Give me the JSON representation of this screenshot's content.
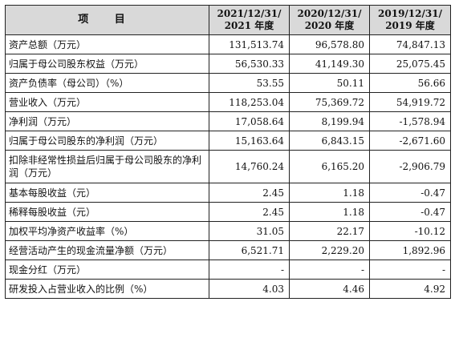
{
  "header": {
    "item": "项 目",
    "periods": [
      {
        "line1": "2021/12/31/",
        "line2": "2021 年度"
      },
      {
        "line1": "2020/12/31/",
        "line2": "2020 年度"
      },
      {
        "line1": "2019/12/31/",
        "line2": "2019 年度"
      }
    ]
  },
  "rows": [
    {
      "label": "资产总额（万元）",
      "v": [
        "131,513.74",
        "96,578.80",
        "74,847.13"
      ]
    },
    {
      "label": "归属于母公司股东权益（万元）",
      "v": [
        "56,530.33",
        "41,149.30",
        "25,075.45"
      ]
    },
    {
      "label": "资产负债率（母公司）（%）",
      "v": [
        "53.55",
        "50.11",
        "56.66"
      ]
    },
    {
      "label": "营业收入（万元）",
      "v": [
        "118,253.04",
        "75,369.72",
        "54,919.72"
      ]
    },
    {
      "label": "净利润（万元）",
      "v": [
        "17,058.64",
        "8,199.94",
        "-1,578.94"
      ]
    },
    {
      "label": "归属于母公司股东的净利润（万元）",
      "v": [
        "15,163.64",
        "6,843.15",
        "-2,671.60"
      ]
    },
    {
      "label": "扣除非经常性损益后归属于母公司股东的净利润（万元）",
      "v": [
        "14,760.24",
        "6,165.20",
        "-2,906.79"
      ]
    },
    {
      "label": "基本每股收益（元）",
      "v": [
        "2.45",
        "1.18",
        "-0.47"
      ]
    },
    {
      "label": "稀释每股收益（元）",
      "v": [
        "2.45",
        "1.18",
        "-0.47"
      ]
    },
    {
      "label": "加权平均净资产收益率（%）",
      "v": [
        "31.05",
        "22.17",
        "-10.12"
      ]
    },
    {
      "label": "经营活动产生的现金流量净额（万元）",
      "v": [
        "6,521.71",
        "2,229.20",
        "1,892.96"
      ]
    },
    {
      "label": "现金分红（万元）",
      "v": [
        "-",
        "-",
        "-"
      ]
    },
    {
      "label": "研发投入占营业收入的比例（%）",
      "v": [
        "4.03",
        "4.46",
        "4.92"
      ]
    }
  ]
}
